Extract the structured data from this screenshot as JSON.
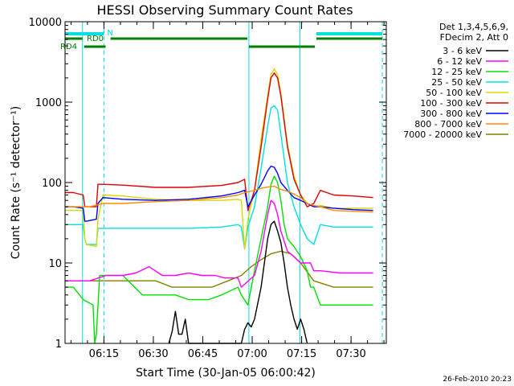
{
  "chart_data": {
    "type": "line",
    "title": "HESSI Observing Summary Count Rates",
    "xlabel": "Start Time (30-Jan-05 06:00:42)",
    "ylabel": "Count Rate (s⁻¹ detector⁻¹)",
    "x_unit": "minutes after 06:00:42",
    "xlim": [
      2.5,
      100
    ],
    "ylim": [
      1,
      10000
    ],
    "yscale": "log",
    "x_ticks": [
      {
        "x": 14.3,
        "label": "06:15"
      },
      {
        "x": 29.3,
        "label": "06:30"
      },
      {
        "x": 44.3,
        "label": "06:45"
      },
      {
        "x": 59.3,
        "label": "07:00"
      },
      {
        "x": 74.3,
        "label": "07:15"
      },
      {
        "x": 89.3,
        "label": "07:30"
      }
    ],
    "y_ticks": [
      {
        "y": 1,
        "label": "1"
      },
      {
        "y": 10,
        "label": "10"
      },
      {
        "y": 100,
        "label": "100"
      },
      {
        "y": 1000,
        "label": "1000"
      },
      {
        "y": 10000,
        "label": "10000"
      }
    ],
    "legend": {
      "position": "right",
      "header": [
        "Det 1,3,4,5,6,9,",
        "FDecim 2, Att 0"
      ],
      "entries": [
        {
          "label": "3 - 6 keV",
          "color": "#000000"
        },
        {
          "label": "6 - 12 keV",
          "color": "#ff00ff"
        },
        {
          "label": "12 - 25 keV",
          "color": "#00e000"
        },
        {
          "label": "25 - 50 keV",
          "color": "#00e0e0"
        },
        {
          "label": "50 - 100 keV",
          "color": "#d8d800"
        },
        {
          "label": "100 - 300 keV",
          "color": "#e00000"
        },
        {
          "label": "300 - 800 keV",
          "color": "#0000ff"
        },
        {
          "label": "800 - 7000 keV",
          "color": "#ff8c00"
        },
        {
          "label": "7000 - 20000 keV",
          "color": "#808000"
        }
      ]
    },
    "series": [
      {
        "color": "#808000",
        "points": [
          [
            2.5,
            6
          ],
          [
            5,
            6
          ],
          [
            10,
            6
          ],
          [
            15,
            6
          ],
          [
            20,
            6
          ],
          [
            30,
            6
          ],
          [
            35,
            5
          ],
          [
            40,
            5
          ],
          [
            47,
            5
          ],
          [
            52,
            6
          ],
          [
            56,
            7
          ],
          [
            59,
            9
          ],
          [
            62,
            11
          ],
          [
            65,
            13
          ],
          [
            68,
            14
          ],
          [
            71,
            13
          ],
          [
            74,
            10
          ],
          [
            78,
            6
          ],
          [
            84,
            5
          ],
          [
            90,
            5
          ],
          [
            96,
            5
          ]
        ]
      },
      {
        "color": "#00e000",
        "points": [
          [
            2.5,
            5
          ],
          [
            5,
            5
          ],
          [
            8,
            3.5
          ],
          [
            11,
            3
          ],
          [
            11.5,
            1
          ],
          [
            12,
            1.3
          ],
          [
            13,
            7
          ],
          [
            14,
            7
          ],
          [
            16,
            7
          ],
          [
            20,
            7
          ],
          [
            26,
            4
          ],
          [
            30,
            4
          ],
          [
            36,
            4
          ],
          [
            40,
            3.5
          ],
          [
            46,
            3.5
          ],
          [
            50,
            4
          ],
          [
            55,
            5
          ],
          [
            56,
            4
          ],
          [
            58,
            3
          ],
          [
            60,
            8
          ],
          [
            62,
            20
          ],
          [
            64,
            50
          ],
          [
            65,
            95
          ],
          [
            66,
            120
          ],
          [
            67,
            100
          ],
          [
            68,
            60
          ],
          [
            69,
            30
          ],
          [
            70,
            20
          ],
          [
            72,
            16
          ],
          [
            74,
            12
          ],
          [
            76,
            8
          ],
          [
            77,
            5
          ],
          [
            78,
            5
          ],
          [
            80,
            3
          ],
          [
            84,
            3
          ],
          [
            90,
            3
          ],
          [
            96,
            3
          ]
        ]
      },
      {
        "color": "#ff00ff",
        "points": [
          [
            2.5,
            6
          ],
          [
            5,
            6
          ],
          [
            10,
            6
          ],
          [
            15,
            7
          ],
          [
            20,
            7
          ],
          [
            24,
            7.5
          ],
          [
            28,
            9
          ],
          [
            32,
            7
          ],
          [
            36,
            7
          ],
          [
            40,
            7.5
          ],
          [
            44,
            7
          ],
          [
            48,
            7
          ],
          [
            51,
            6.5
          ],
          [
            55,
            6.5
          ],
          [
            56,
            5
          ],
          [
            60,
            7
          ],
          [
            62,
            14
          ],
          [
            64,
            40
          ],
          [
            65,
            60
          ],
          [
            66,
            55
          ],
          [
            67,
            40
          ],
          [
            68,
            25
          ],
          [
            70,
            14
          ],
          [
            72,
            12
          ],
          [
            74,
            10
          ],
          [
            77,
            10
          ],
          [
            78,
            8
          ],
          [
            80,
            8
          ],
          [
            86,
            7.5
          ],
          [
            92,
            7.5
          ],
          [
            96,
            7.5
          ]
        ]
      },
      {
        "color": "#000000",
        "points": [
          [
            34,
            1
          ],
          [
            35,
            1.4
          ],
          [
            36,
            2.5
          ],
          [
            37,
            1.3
          ],
          [
            38,
            1.3
          ],
          [
            39,
            2
          ],
          [
            40,
            1
          ],
          [
            56,
            1
          ],
          [
            57,
            1.5
          ],
          [
            58,
            1.8
          ],
          [
            59,
            1.6
          ],
          [
            60,
            2
          ],
          [
            62,
            5
          ],
          [
            64,
            20
          ],
          [
            65,
            30
          ],
          [
            66,
            33
          ],
          [
            67,
            25
          ],
          [
            68,
            18
          ],
          [
            69,
            10
          ],
          [
            70,
            5
          ],
          [
            71,
            3
          ],
          [
            72,
            2
          ],
          [
            73,
            1.5
          ],
          [
            74,
            2
          ],
          [
            75,
            1.5
          ],
          [
            76,
            1
          ]
        ]
      },
      {
        "color": "#00e0e0",
        "points": [
          [
            2.5,
            30
          ],
          [
            5,
            30
          ],
          [
            8,
            30
          ],
          [
            8.5,
            20
          ],
          [
            9,
            17
          ],
          [
            12,
            17
          ],
          [
            12.5,
            27
          ],
          [
            14,
            27
          ],
          [
            20,
            27
          ],
          [
            30,
            27
          ],
          [
            40,
            27
          ],
          [
            50,
            28
          ],
          [
            55,
            30
          ],
          [
            56,
            28
          ],
          [
            57,
            15
          ],
          [
            58,
            28
          ],
          [
            60,
            50
          ],
          [
            62,
            150
          ],
          [
            64,
            500
          ],
          [
            65,
            850
          ],
          [
            66,
            900
          ],
          [
            67,
            800
          ],
          [
            68,
            400
          ],
          [
            70,
            100
          ],
          [
            72,
            50
          ],
          [
            74,
            30
          ],
          [
            76,
            20
          ],
          [
            78,
            17
          ],
          [
            80,
            30
          ],
          [
            84,
            28
          ],
          [
            90,
            28
          ],
          [
            96,
            28
          ]
        ]
      },
      {
        "color": "#d8d800",
        "points": [
          [
            2.5,
            45
          ],
          [
            5,
            45
          ],
          [
            8,
            45
          ],
          [
            8.5,
            20
          ],
          [
            9,
            17
          ],
          [
            12,
            16
          ],
          [
            12.5,
            35
          ],
          [
            14,
            70
          ],
          [
            20,
            68
          ],
          [
            30,
            62
          ],
          [
            40,
            60
          ],
          [
            50,
            60
          ],
          [
            55,
            62
          ],
          [
            56,
            60
          ],
          [
            57,
            15
          ],
          [
            58,
            35
          ],
          [
            60,
            80
          ],
          [
            62,
            350
          ],
          [
            64,
            1200
          ],
          [
            65,
            2200
          ],
          [
            66,
            2600
          ],
          [
            67,
            2200
          ],
          [
            68,
            1300
          ],
          [
            70,
            300
          ],
          [
            72,
            120
          ],
          [
            74,
            70
          ],
          [
            76,
            55
          ],
          [
            78,
            50
          ],
          [
            80,
            52
          ],
          [
            84,
            48
          ],
          [
            90,
            48
          ],
          [
            96,
            48
          ]
        ]
      },
      {
        "color": "#e00000",
        "points": [
          [
            2.5,
            75
          ],
          [
            5,
            75
          ],
          [
            8,
            70
          ],
          [
            8.5,
            50
          ],
          [
            9,
            50
          ],
          [
            12,
            50
          ],
          [
            12.5,
            95
          ],
          [
            14,
            95
          ],
          [
            20,
            93
          ],
          [
            30,
            87
          ],
          [
            40,
            87
          ],
          [
            50,
            92
          ],
          [
            55,
            100
          ],
          [
            57,
            110
          ],
          [
            58,
            45
          ],
          [
            60,
            80
          ],
          [
            62,
            280
          ],
          [
            64,
            1100
          ],
          [
            65,
            2000
          ],
          [
            66,
            2300
          ],
          [
            67,
            2000
          ],
          [
            68,
            1200
          ],
          [
            70,
            280
          ],
          [
            72,
            110
          ],
          [
            74,
            70
          ],
          [
            76,
            50
          ],
          [
            78,
            55
          ],
          [
            80,
            80
          ],
          [
            84,
            70
          ],
          [
            90,
            68
          ],
          [
            96,
            65
          ]
        ]
      },
      {
        "color": "#0000ff",
        "points": [
          [
            2.5,
            50
          ],
          [
            5,
            50
          ],
          [
            8,
            48
          ],
          [
            8.5,
            33
          ],
          [
            9,
            33
          ],
          [
            12,
            35
          ],
          [
            12.5,
            55
          ],
          [
            14,
            65
          ],
          [
            20,
            62
          ],
          [
            30,
            60
          ],
          [
            40,
            62
          ],
          [
            50,
            68
          ],
          [
            55,
            75
          ],
          [
            57,
            80
          ],
          [
            58,
            50
          ],
          [
            60,
            70
          ],
          [
            62,
            95
          ],
          [
            64,
            140
          ],
          [
            65,
            160
          ],
          [
            66,
            155
          ],
          [
            67,
            130
          ],
          [
            68,
            100
          ],
          [
            70,
            80
          ],
          [
            72,
            65
          ],
          [
            74,
            60
          ],
          [
            76,
            55
          ],
          [
            78,
            50
          ],
          [
            80,
            50
          ],
          [
            84,
            48
          ],
          [
            90,
            46
          ],
          [
            96,
            45
          ]
        ]
      },
      {
        "color": "#ff8c00",
        "points": [
          [
            2.5,
            50
          ],
          [
            5,
            50
          ],
          [
            10,
            50
          ],
          [
            14,
            55
          ],
          [
            20,
            55
          ],
          [
            30,
            58
          ],
          [
            40,
            60
          ],
          [
            50,
            65
          ],
          [
            55,
            70
          ],
          [
            57,
            75
          ],
          [
            60,
            80
          ],
          [
            62,
            85
          ],
          [
            64,
            88
          ],
          [
            66,
            90
          ],
          [
            68,
            82
          ],
          [
            70,
            78
          ],
          [
            72,
            72
          ],
          [
            74,
            65
          ],
          [
            76,
            55
          ],
          [
            78,
            52
          ],
          [
            80,
            50
          ],
          [
            84,
            45
          ],
          [
            90,
            44
          ],
          [
            96,
            43
          ]
        ]
      }
    ],
    "annotations": {
      "night_dashed_x": [
        2.5,
        14.3,
        73.8,
        98.8
      ],
      "night_bars": [
        [
          2.5,
          14.3
        ],
        [
          78.8,
          98.8
        ]
      ],
      "night_bar_label": "N",
      "saa_solid_x": [
        2.5,
        7.8,
        58.3,
        73.8
      ],
      "rd0_label": "RD0",
      "rd4_label": "RD4",
      "rd0_bars": [
        [
          2.5,
          7.8
        ],
        [
          16.3,
          57.8
        ],
        [
          78.8,
          98.8
        ]
      ],
      "rd4_bars": [
        [
          8.3,
          14.8
        ],
        [
          58.3,
          78.3
        ]
      ]
    }
  },
  "timestamp": "26-Feb-2010 20:23"
}
